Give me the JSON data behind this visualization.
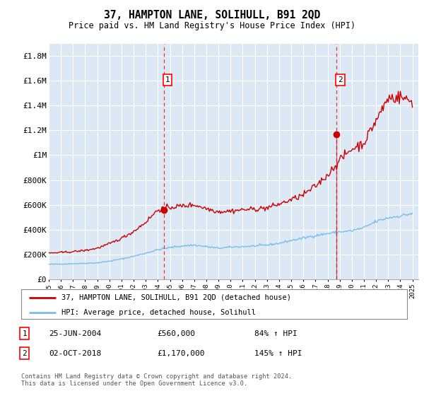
{
  "title": "37, HAMPTON LANE, SOLIHULL, B91 2QD",
  "subtitle": "Price paid vs. HM Land Registry's House Price Index (HPI)",
  "plot_bg_color": "#dce9f5",
  "ylim": [
    0,
    1900000
  ],
  "yticks": [
    0,
    200000,
    400000,
    600000,
    800000,
    1000000,
    1200000,
    1400000,
    1600000,
    1800000
  ],
  "ytick_labels": [
    "£0",
    "£200K",
    "£400K",
    "£600K",
    "£800K",
    "£1M",
    "£1.2M",
    "£1.4M",
    "£1.6M",
    "£1.8M"
  ],
  "hpi_color": "#7bbde8",
  "price_color": "#cc0000",
  "marker1_x": 2004.49,
  "marker1_price": 560000,
  "marker2_x": 2018.75,
  "marker2_price": 1170000,
  "legend_line1": "37, HAMPTON LANE, SOLIHULL, B91 2QD (detached house)",
  "legend_line2": "HPI: Average price, detached house, Solihull",
  "note1_num": "1",
  "note1_date": "25-JUN-2004",
  "note1_price": "£560,000",
  "note1_pct": "84% ↑ HPI",
  "note2_num": "2",
  "note2_date": "02-OCT-2018",
  "note2_price": "£1,170,000",
  "note2_pct": "145% ↑ HPI",
  "footer": "Contains HM Land Registry data © Crown copyright and database right 2024.\nThis data is licensed under the Open Government Licence v3.0.",
  "xlim_left": 1995.0,
  "xlim_right": 2025.5
}
